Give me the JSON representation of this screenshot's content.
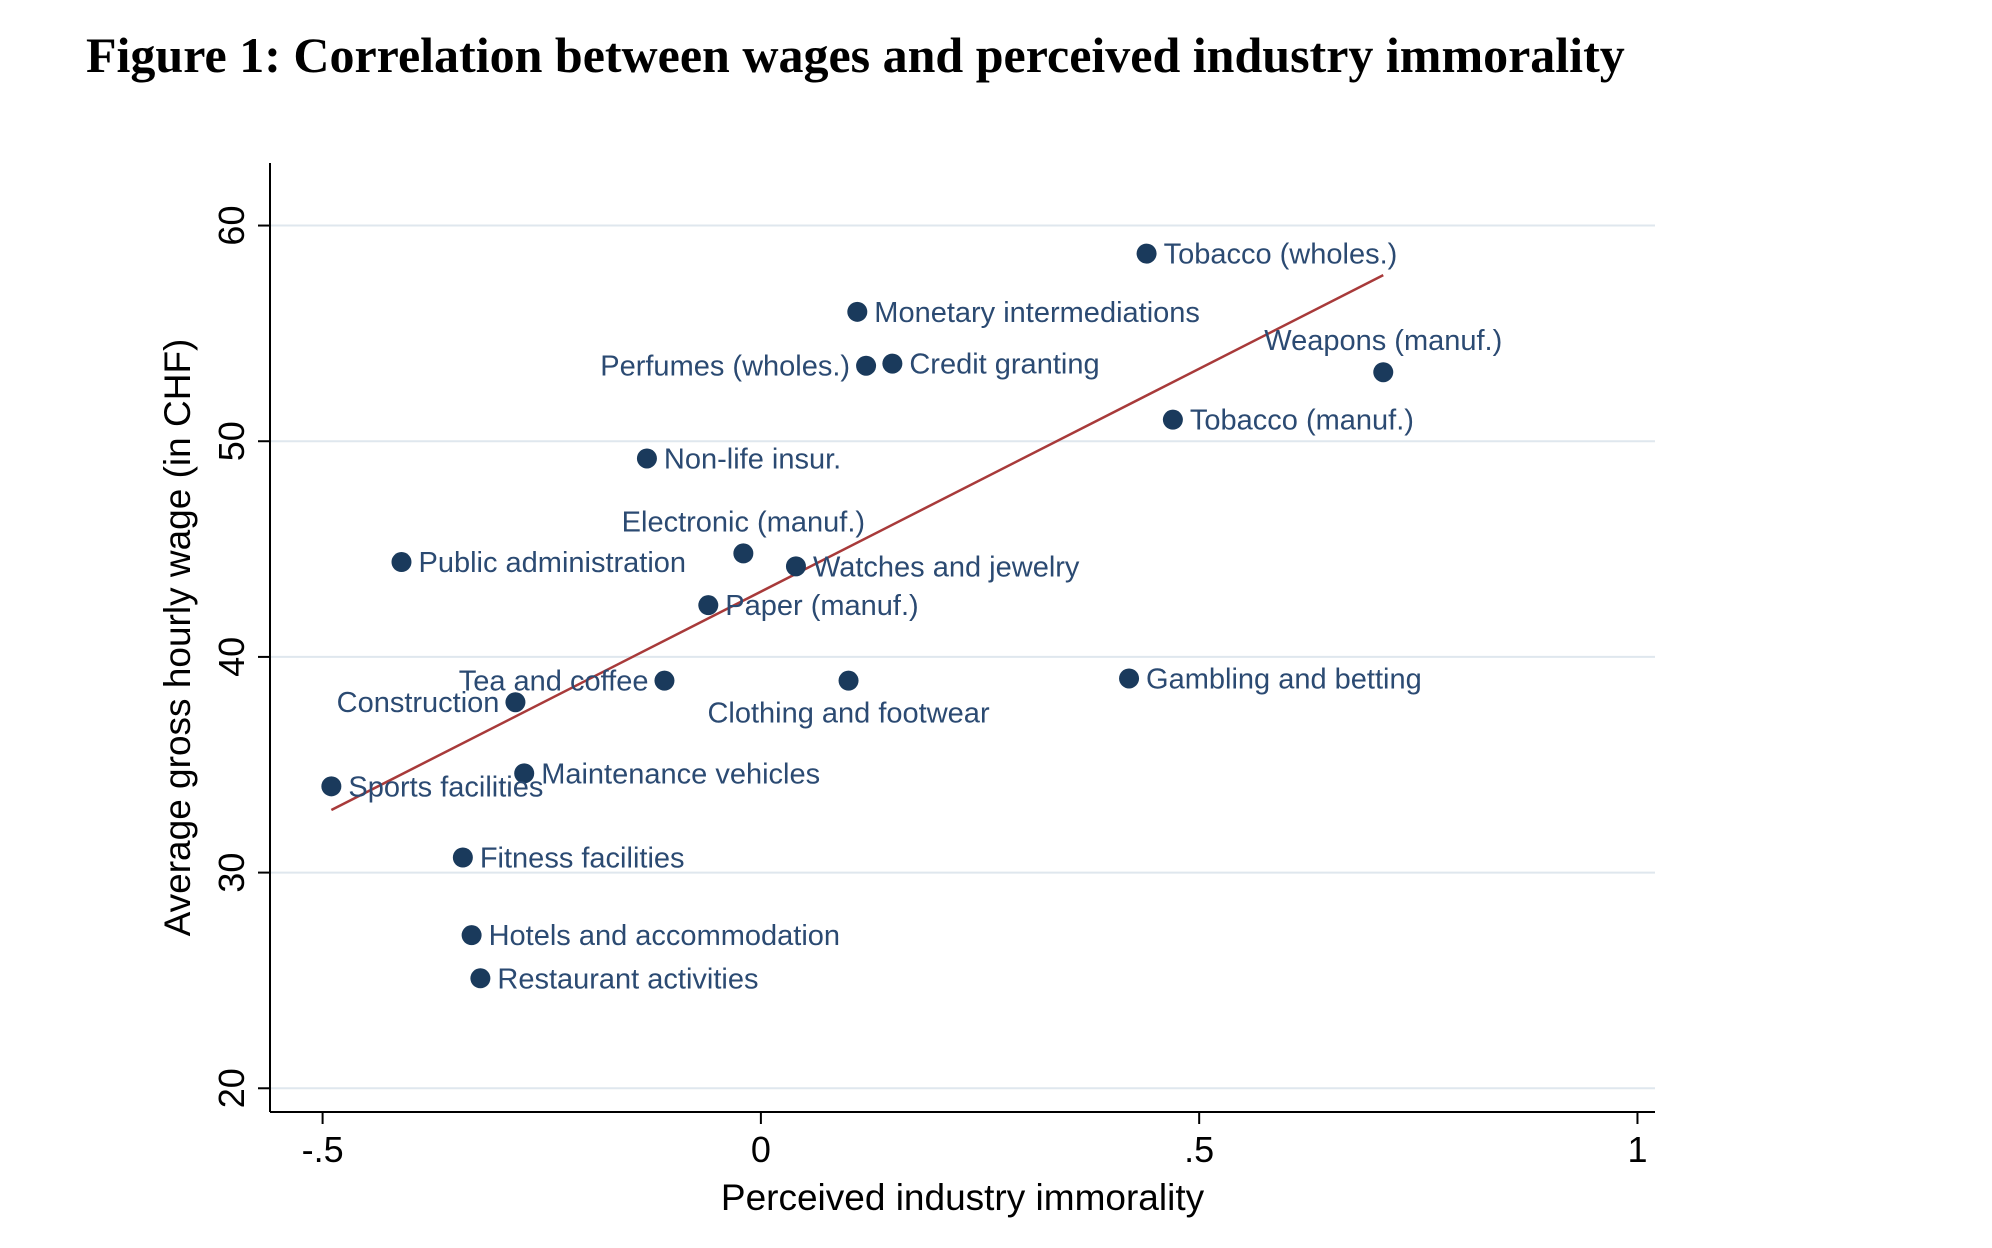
{
  "figure": {
    "title": "Figure 1: Correlation between wages and perceived industry immorality"
  },
  "colors": {
    "point": "#1a3a5c",
    "fit_line": "#a83a3a",
    "label": "#2b4a72",
    "gridline": "#dfe7ee",
    "axis": "#000000"
  },
  "chart_data": {
    "type": "scatter",
    "title": "",
    "xlabel": "Perceived industry immorality",
    "ylabel": "Average gross hourly wage (in CHF)",
    "xlim": [
      -0.56,
      1.02
    ],
    "ylim": [
      18.9,
      62.9
    ],
    "xticks": [
      -0.5,
      0,
      0.5,
      1
    ],
    "xtick_labels": [
      "-.5",
      "0",
      ".5",
      "1"
    ],
    "yticks": [
      20,
      30,
      40,
      50,
      60
    ],
    "ytick_labels": [
      "20",
      "30",
      "40",
      "50",
      "60"
    ],
    "grid": "horizontal",
    "legend": "none",
    "points": [
      {
        "label": "Tobacco (wholes.)",
        "x": 0.44,
        "y": 58.7,
        "label_side": "right"
      },
      {
        "label": "Monetary intermediations",
        "x": 0.11,
        "y": 56.0,
        "label_side": "right"
      },
      {
        "label": "Credit granting",
        "x": 0.15,
        "y": 53.6,
        "label_side": "right"
      },
      {
        "label": "Perfumes (wholes.)",
        "x": 0.12,
        "y": 53.5,
        "label_side": "left"
      },
      {
        "label": "Weapons (manuf.)",
        "x": 0.71,
        "y": 53.2,
        "label_side": "above"
      },
      {
        "label": "Tobacco (manuf.)",
        "x": 0.47,
        "y": 51.0,
        "label_side": "right"
      },
      {
        "label": "Non-life insur.",
        "x": -0.13,
        "y": 49.2,
        "label_side": "right"
      },
      {
        "label": "Electronic (manuf.)",
        "x": -0.02,
        "y": 44.8,
        "label_side": "above"
      },
      {
        "label": "Public administration",
        "x": -0.41,
        "y": 44.4,
        "label_side": "right"
      },
      {
        "label": "Watches and jewelry",
        "x": 0.04,
        "y": 44.2,
        "label_side": "right"
      },
      {
        "label": "Paper (manuf.)",
        "x": -0.06,
        "y": 42.4,
        "label_side": "right"
      },
      {
        "label": "Tea and coffee",
        "x": -0.11,
        "y": 38.9,
        "label_side": "left"
      },
      {
        "label": "Clothing and footwear",
        "x": 0.1,
        "y": 38.9,
        "label_side": "below"
      },
      {
        "label": "Gambling and betting",
        "x": 0.42,
        "y": 39.0,
        "label_side": "right"
      },
      {
        "label": "Construction",
        "x": -0.28,
        "y": 37.9,
        "label_side": "left"
      },
      {
        "label": "Maintenance vehicles",
        "x": -0.27,
        "y": 34.6,
        "label_side": "right"
      },
      {
        "label": "Sports facilities",
        "x": -0.49,
        "y": 34.0,
        "label_side": "right"
      },
      {
        "label": "Fitness facilities",
        "x": -0.34,
        "y": 30.7,
        "label_side": "right"
      },
      {
        "label": "Hotels and accommodation",
        "x": -0.33,
        "y": 27.1,
        "label_side": "right"
      },
      {
        "label": "Restaurant activities",
        "x": -0.32,
        "y": 25.1,
        "label_side": "right"
      }
    ],
    "fit_line": {
      "x": [
        -0.49,
        0.71
      ],
      "y": [
        32.9,
        57.7
      ]
    }
  }
}
